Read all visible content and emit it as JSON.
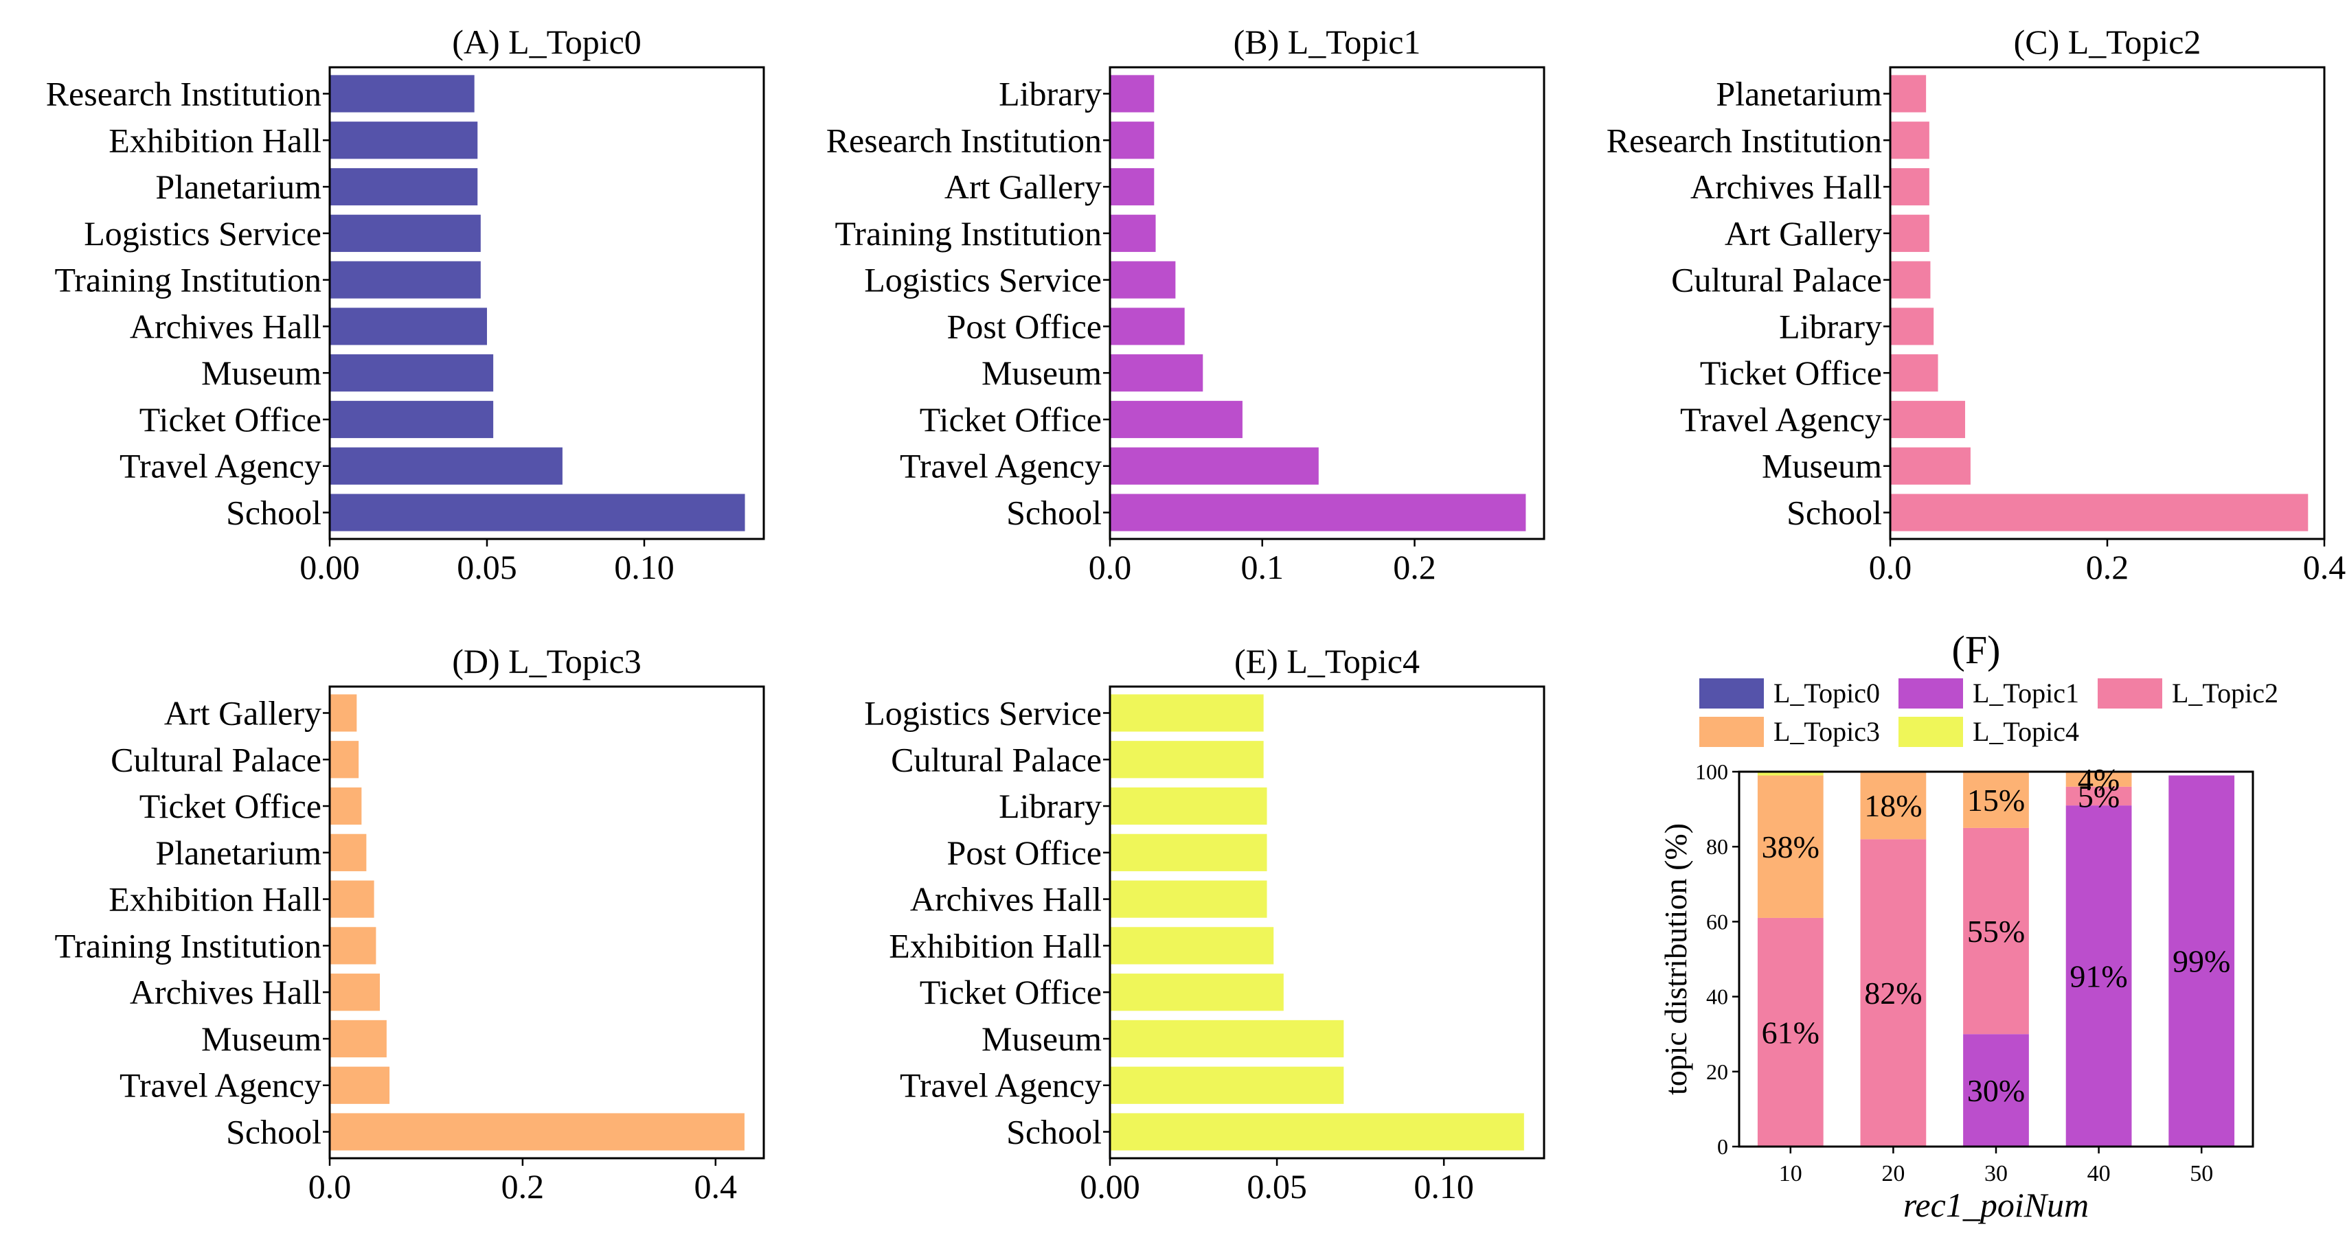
{
  "chart_data": [
    {
      "type": "bar",
      "orientation": "horizontal",
      "title": "(A) L_Topic0",
      "color": "#5553aa",
      "categories": [
        "Research Institution",
        "Exhibition Hall",
        "Planetarium",
        "Logistics Service",
        "Training Institution",
        "Archives Hall",
        "Museum",
        "Ticket Office",
        "Travel Agency",
        "School"
      ],
      "values": [
        0.046,
        0.047,
        0.047,
        0.048,
        0.048,
        0.05,
        0.052,
        0.052,
        0.074,
        0.132
      ],
      "xlim": [
        0,
        0.138
      ],
      "ticks": [
        0.0,
        0.05,
        0.1
      ],
      "tick_labels": [
        "0.00",
        "0.05",
        "0.10"
      ]
    },
    {
      "type": "bar",
      "orientation": "horizontal",
      "title": "(B) L_Topic1",
      "color": "#bb4ecc",
      "categories": [
        "Library",
        "Research Institution",
        "Art Gallery",
        "Training Institution",
        "Logistics Service",
        "Post Office",
        "Museum",
        "Ticket Office",
        "Travel Agency",
        "School"
      ],
      "values": [
        0.029,
        0.029,
        0.029,
        0.03,
        0.043,
        0.049,
        0.061,
        0.087,
        0.137,
        0.273
      ],
      "xlim": [
        0,
        0.285
      ],
      "ticks": [
        0.0,
        0.1,
        0.2
      ],
      "tick_labels": [
        "0.0",
        "0.1",
        "0.2"
      ]
    },
    {
      "type": "bar",
      "orientation": "horizontal",
      "title": "(C) L_Topic2",
      "color": "#f27fa3",
      "categories": [
        "Planetarium",
        "Research Institution",
        "Archives Hall",
        "Art Gallery",
        "Cultural Palace",
        "Library",
        "Ticket Office",
        "Travel Agency",
        "Museum",
        "School"
      ],
      "values": [
        0.033,
        0.036,
        0.036,
        0.036,
        0.037,
        0.04,
        0.044,
        0.069,
        0.074,
        0.385
      ],
      "xlim": [
        0,
        0.4
      ],
      "ticks": [
        0.0,
        0.2,
        0.4
      ],
      "tick_labels": [
        "0.0",
        "0.2",
        "0.4"
      ]
    },
    {
      "type": "bar",
      "orientation": "horizontal",
      "title": "(D) L_Topic3",
      "color": "#fdb274",
      "categories": [
        "Art Gallery",
        "Cultural Palace",
        "Ticket Office",
        "Planetarium",
        "Exhibition Hall",
        "Training Institution",
        "Archives Hall",
        "Museum",
        "Travel Agency",
        "School"
      ],
      "values": [
        0.028,
        0.03,
        0.033,
        0.038,
        0.046,
        0.048,
        0.052,
        0.059,
        0.062,
        0.43
      ],
      "xlim": [
        0,
        0.45
      ],
      "ticks": [
        0.0,
        0.2,
        0.4
      ],
      "tick_labels": [
        "0.0",
        "0.2",
        "0.4"
      ]
    },
    {
      "type": "bar",
      "orientation": "horizontal",
      "title": "(E) L_Topic4",
      "color": "#eff659",
      "categories": [
        "Logistics Service",
        "Cultural Palace",
        "Library",
        "Post Office",
        "Archives Hall",
        "Exhibition Hall",
        "Ticket Office",
        "Museum",
        "Travel Agency",
        "School"
      ],
      "values": [
        0.046,
        0.046,
        0.047,
        0.047,
        0.047,
        0.049,
        0.052,
        0.07,
        0.07,
        0.124
      ],
      "xlim": [
        0,
        0.13
      ],
      "ticks": [
        0.0,
        0.05,
        0.1
      ],
      "tick_labels": [
        "0.00",
        "0.05",
        "0.10"
      ]
    },
    {
      "type": "bar",
      "stacked": true,
      "title": "(F)",
      "xlabel": "rec1_poiNum",
      "ylabel": "topic distribution (%)",
      "categories": [
        "10",
        "20",
        "30",
        "40",
        "50"
      ],
      "ylim": [
        0,
        100
      ],
      "yticks": [
        "0",
        "20",
        "40",
        "60",
        "80",
        "100"
      ],
      "legend": [
        "L_Topic0",
        "L_Topic1",
        "L_Topic2",
        "L_Topic3",
        "L_Topic4"
      ],
      "colors": [
        "#5553aa",
        "#bb4ecc",
        "#f27fa3",
        "#fdb274",
        "#eff659"
      ],
      "series": [
        {
          "name": "L_Topic0",
          "values": [
            0,
            0,
            0,
            0,
            0
          ]
        },
        {
          "name": "L_Topic1",
          "values": [
            0,
            0,
            30,
            91,
            99
          ]
        },
        {
          "name": "L_Topic2",
          "values": [
            61,
            82,
            55,
            5,
            0
          ]
        },
        {
          "name": "L_Topic3",
          "values": [
            38,
            18,
            15,
            4,
            0
          ]
        },
        {
          "name": "L_Topic4",
          "values": [
            1,
            0,
            0,
            0,
            0
          ]
        }
      ],
      "data_labels": [
        {
          "category": "10",
          "series": "L_Topic2",
          "text": "61%"
        },
        {
          "category": "10",
          "series": "L_Topic3",
          "text": "38%"
        },
        {
          "category": "20",
          "series": "L_Topic2",
          "text": "82%"
        },
        {
          "category": "20",
          "series": "L_Topic3",
          "text": "18%"
        },
        {
          "category": "30",
          "series": "L_Topic1",
          "text": "30%"
        },
        {
          "category": "30",
          "series": "L_Topic2",
          "text": "55%"
        },
        {
          "category": "30",
          "series": "L_Topic3",
          "text": "15%"
        },
        {
          "category": "40",
          "series": "L_Topic1",
          "text": "91%"
        },
        {
          "category": "40",
          "series": "L_Topic2",
          "text": "5%"
        },
        {
          "category": "40",
          "series": "L_Topic3",
          "text": "4%"
        },
        {
          "category": "50",
          "series": "L_Topic1",
          "text": "99%"
        }
      ]
    }
  ]
}
